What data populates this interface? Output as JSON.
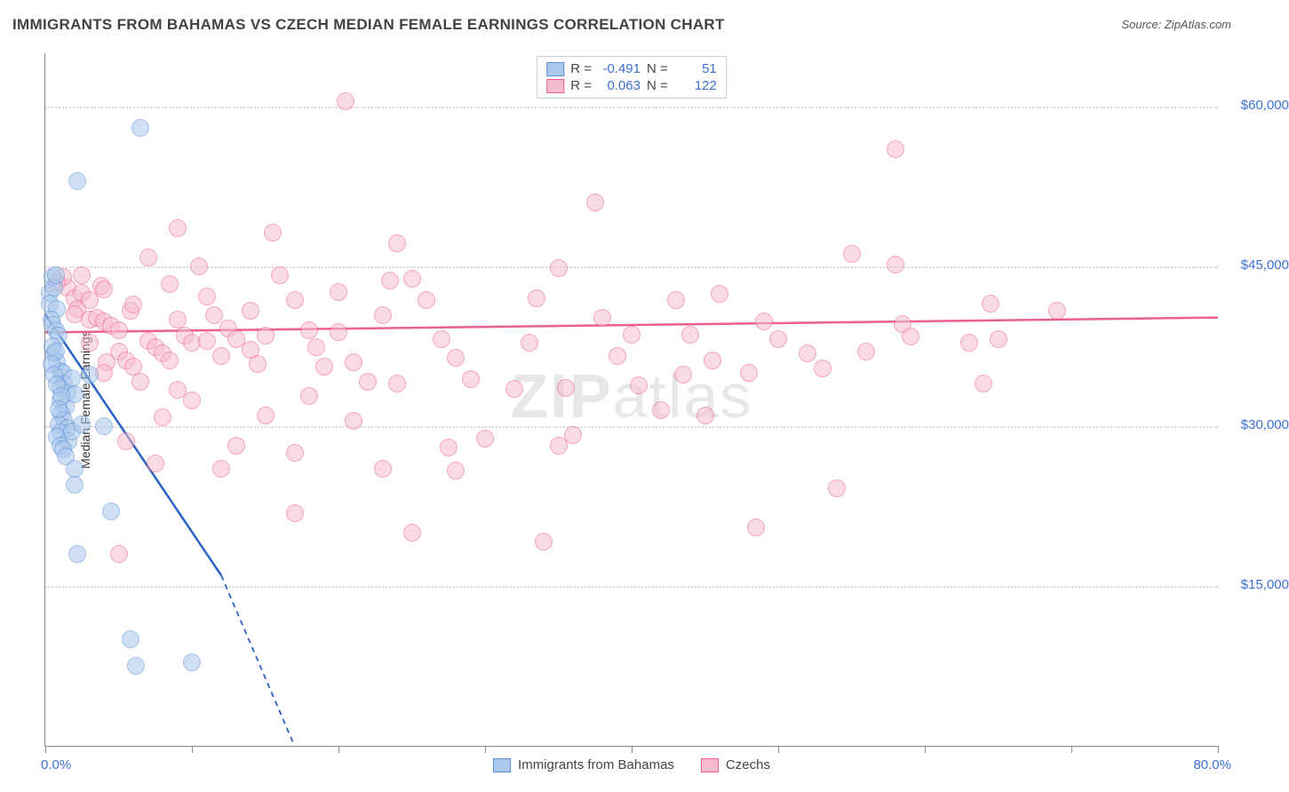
{
  "title": "IMMIGRANTS FROM BAHAMAS VS CZECH MEDIAN FEMALE EARNINGS CORRELATION CHART",
  "source_label": "Source: ZipAtlas.com",
  "ylabel": "Median Female Earnings",
  "watermark_a": "ZIP",
  "watermark_b": "atlas",
  "chart": {
    "type": "scatter",
    "background_color": "#ffffff",
    "grid_color": "#d8d8d8",
    "axis_color": "#888888",
    "xlim": [
      0,
      80
    ],
    "ylim": [
      0,
      65000
    ],
    "xtick_positions": [
      0,
      10,
      20,
      30,
      40,
      50,
      60,
      70,
      80
    ],
    "xlabel_min": "0.0%",
    "xlabel_max": "80.0%",
    "ytick_values": [
      15000,
      30000,
      45000,
      60000
    ],
    "ytick_labels": [
      "$15,000",
      "$30,000",
      "$45,000",
      "$60,000"
    ],
    "label_color": "#3b6fd6",
    "label_fontsize": 15,
    "title_fontsize": 17,
    "marker_radius": 9,
    "marker_border_width": 1.5,
    "marker_fill_opacity": 0.28
  },
  "series": {
    "bahamas": {
      "name": "Immigrants from Bahamas",
      "stroke": "#5a8fd6",
      "fill": "#a9c8ec",
      "r_value": "-0.491",
      "n_value": "51",
      "regression": {
        "x1": 0,
        "y1": 40500,
        "x2_solid": 12,
        "y2_solid": 16000,
        "x2_dash": 17,
        "y2_dash": 0
      },
      "points": [
        [
          0.3,
          42500
        ],
        [
          0.3,
          41500
        ],
        [
          0.5,
          44000
        ],
        [
          0.6,
          43000
        ],
        [
          0.8,
          41000
        ],
        [
          0.4,
          40000
        ],
        [
          0.5,
          39500
        ],
        [
          0.7,
          39000
        ],
        [
          0.9,
          38500
        ],
        [
          0.6,
          36800
        ],
        [
          0.8,
          36000
        ],
        [
          1.0,
          35200
        ],
        [
          1.2,
          35000
        ],
        [
          1.3,
          34000
        ],
        [
          1.0,
          33600
        ],
        [
          1.5,
          33200
        ],
        [
          1.0,
          32400
        ],
        [
          1.4,
          31800
        ],
        [
          1.1,
          31200
        ],
        [
          1.3,
          30600
        ],
        [
          0.9,
          30200
        ],
        [
          1.5,
          29800
        ],
        [
          1.0,
          29400
        ],
        [
          0.8,
          29000
        ],
        [
          1.6,
          28600
        ],
        [
          1.0,
          28200
        ],
        [
          1.2,
          27800
        ],
        [
          1.4,
          27200
        ],
        [
          1.8,
          34500
        ],
        [
          2.0,
          33000
        ],
        [
          1.8,
          29500
        ],
        [
          2.5,
          30200
        ],
        [
          3.0,
          34800
        ],
        [
          0.7,
          44200
        ],
        [
          2.2,
          53000
        ],
        [
          6.5,
          58000
        ],
        [
          4.0,
          30000
        ],
        [
          2.0,
          26000
        ],
        [
          2.0,
          24500
        ],
        [
          4.5,
          22000
        ],
        [
          2.2,
          18000
        ],
        [
          5.8,
          10000
        ],
        [
          6.2,
          7500
        ],
        [
          10.0,
          7800
        ],
        [
          0.5,
          37500
        ],
        [
          0.7,
          37000
        ],
        [
          0.4,
          35800
        ],
        [
          0.6,
          34800
        ],
        [
          0.8,
          33900
        ],
        [
          1.1,
          32800
        ],
        [
          0.9,
          31600
        ]
      ]
    },
    "czechs": {
      "name": "Czechs",
      "stroke": "#ea5f8c",
      "fill": "#f6bccd",
      "r_value": "0.063",
      "n_value": "122",
      "regression": {
        "x1": 0,
        "y1": 38800,
        "x2": 80,
        "y2": 40200
      },
      "points": [
        [
          1.5,
          43000
        ],
        [
          1.2,
          44000
        ],
        [
          2.0,
          42000
        ],
        [
          2.2,
          41000
        ],
        [
          0.8,
          43500
        ],
        [
          2.5,
          42500
        ],
        [
          3.0,
          41800
        ],
        [
          2.0,
          40500
        ],
        [
          3.0,
          40000
        ],
        [
          3.5,
          40200
        ],
        [
          4.0,
          39800
        ],
        [
          4.5,
          39400
        ],
        [
          5.0,
          39000
        ],
        [
          3.8,
          43200
        ],
        [
          3.0,
          37800
        ],
        [
          4.2,
          36000
        ],
        [
          5.0,
          37000
        ],
        [
          5.5,
          36200
        ],
        [
          6.0,
          35600
        ],
        [
          7.0,
          38000
        ],
        [
          5.8,
          40800
        ],
        [
          7.5,
          37400
        ],
        [
          8.0,
          36800
        ],
        [
          8.5,
          36200
        ],
        [
          9.0,
          40000
        ],
        [
          9.5,
          38500
        ],
        [
          10.0,
          37800
        ],
        [
          7.0,
          45800
        ],
        [
          11.0,
          38000
        ],
        [
          12.0,
          36600
        ],
        [
          11.5,
          40400
        ],
        [
          12.5,
          39200
        ],
        [
          13.0,
          38200
        ],
        [
          14.0,
          37200
        ],
        [
          14.5,
          35800
        ],
        [
          15.0,
          38500
        ],
        [
          16.0,
          44200
        ],
        [
          10.5,
          45000
        ],
        [
          15.5,
          48200
        ],
        [
          20.5,
          60500
        ],
        [
          18.0,
          39000
        ],
        [
          18.5,
          37400
        ],
        [
          19.0,
          35600
        ],
        [
          20.0,
          38800
        ],
        [
          21.0,
          36000
        ],
        [
          22.0,
          34200
        ],
        [
          23.0,
          40400
        ],
        [
          24.0,
          47200
        ],
        [
          25.0,
          43800
        ],
        [
          26.0,
          41800
        ],
        [
          27.0,
          38200
        ],
        [
          28.0,
          36400
        ],
        [
          29.0,
          34400
        ],
        [
          30.0,
          28800
        ],
        [
          27.5,
          28000
        ],
        [
          24.0,
          34000
        ],
        [
          21.0,
          30500
        ],
        [
          18.0,
          32800
        ],
        [
          15.0,
          31000
        ],
        [
          13.0,
          28200
        ],
        [
          10.0,
          32400
        ],
        [
          8.0,
          30800
        ],
        [
          5.5,
          28600
        ],
        [
          7.5,
          26500
        ],
        [
          12.0,
          26000
        ],
        [
          17.0,
          27500
        ],
        [
          23.0,
          26000
        ],
        [
          28.0,
          25800
        ],
        [
          33.0,
          37800
        ],
        [
          32.0,
          33500
        ],
        [
          35.0,
          44800
        ],
        [
          35.5,
          33600
        ],
        [
          36.0,
          29200
        ],
        [
          35.0,
          28200
        ],
        [
          33.5,
          42000
        ],
        [
          37.5,
          51000
        ],
        [
          38.0,
          40200
        ],
        [
          39.0,
          36600
        ],
        [
          40.0,
          38600
        ],
        [
          40.5,
          33800
        ],
        [
          42.0,
          31500
        ],
        [
          43.0,
          41800
        ],
        [
          43.5,
          34800
        ],
        [
          44.0,
          38600
        ],
        [
          45.0,
          31000
        ],
        [
          45.5,
          36200
        ],
        [
          46.0,
          42400
        ],
        [
          48.0,
          35000
        ],
        [
          48.5,
          20500
        ],
        [
          49.0,
          39800
        ],
        [
          50.0,
          38200
        ],
        [
          52.0,
          36800
        ],
        [
          53.0,
          35400
        ],
        [
          54.0,
          24200
        ],
        [
          55.0,
          46200
        ],
        [
          56.0,
          37000
        ],
        [
          58.0,
          56000
        ],
        [
          58.5,
          39600
        ],
        [
          58.0,
          45200
        ],
        [
          59.0,
          38400
        ],
        [
          63.0,
          37800
        ],
        [
          64.0,
          34000
        ],
        [
          64.5,
          41500
        ],
        [
          65.0,
          38200
        ],
        [
          69.0,
          40800
        ],
        [
          2.5,
          44200
        ],
        [
          4.0,
          42800
        ],
        [
          6.0,
          41400
        ],
        [
          8.5,
          43300
        ],
        [
          11.0,
          42200
        ],
        [
          14.0,
          40800
        ],
        [
          17.0,
          41800
        ],
        [
          20.0,
          42600
        ],
        [
          23.5,
          43700
        ],
        [
          9.0,
          48600
        ],
        [
          34.0,
          19200
        ],
        [
          25.0,
          20000
        ],
        [
          17.0,
          21800
        ],
        [
          5.0,
          18000
        ],
        [
          4.0,
          35000
        ],
        [
          6.5,
          34200
        ],
        [
          9.0,
          33400
        ]
      ]
    }
  },
  "legend": {
    "r_label": "R =",
    "n_label": "N ="
  }
}
